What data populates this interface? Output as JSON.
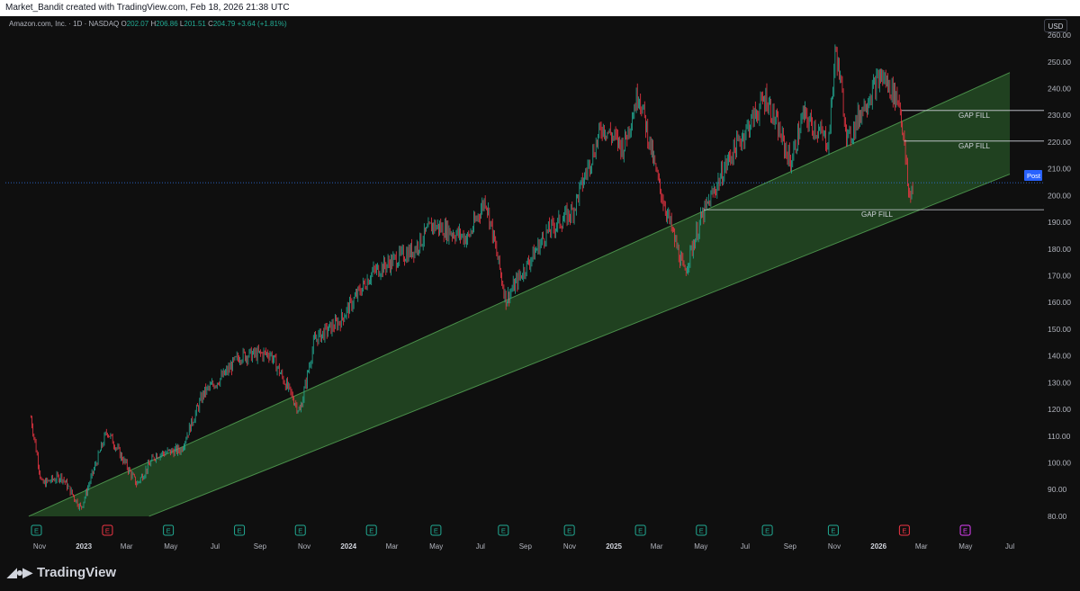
{
  "header": {
    "credit": "Market_Bandit created with TradingView.com, Feb 18, 2026 21:38 UTC"
  },
  "legend": {
    "symbol": "Amazon.com, Inc. · 1D · NASDAQ",
    "o_label": "O",
    "o_value": "202.07",
    "h_label": "H",
    "h_value": "206.86",
    "l_label": "L",
    "l_value": "201.51",
    "c_label": "C",
    "c_value": "204.79",
    "change": "+3.64 (+1.81%)"
  },
  "currency_button": "USD",
  "footer": {
    "brand": "TradingView",
    "logo_icon": "tradingview-logo-icon"
  },
  "colors": {
    "up": "#22ab94",
    "down": "#f23645",
    "channel_fill": "#2f6b2f",
    "channel_line": "#4a8f4a",
    "price_line": "#3179f5",
    "post_badge": "#2962ff"
  },
  "chart_data": {
    "type": "candlestick",
    "ylim": [
      75,
      262
    ],
    "y_ticks": [
      80,
      90,
      100,
      110,
      120,
      130,
      140,
      150,
      160,
      170,
      180,
      190,
      200,
      210,
      220,
      230,
      240,
      250,
      260
    ],
    "x_ticks": [
      "Nov",
      "2023",
      "Mar",
      "May",
      "Jul",
      "Sep",
      "Nov",
      "2024",
      "Mar",
      "May",
      "Jul",
      "Sep",
      "Nov",
      "2025",
      "Mar",
      "May",
      "Jul",
      "Sep",
      "Nov",
      "2026",
      "Mar",
      "May",
      "Jul"
    ],
    "price_path": [
      [
        "2022-10-20",
        117
      ],
      [
        "2022-11-04",
        92
      ],
      [
        "2022-12-01",
        95
      ],
      [
        "2022-12-28",
        83
      ],
      [
        "2023-02-02",
        112
      ],
      [
        "2023-03-15",
        92
      ],
      [
        "2023-04-10",
        103
      ],
      [
        "2023-05-15",
        105
      ],
      [
        "2023-06-15",
        126
      ],
      [
        "2023-07-14",
        133
      ],
      [
        "2023-08-04",
        140
      ],
      [
        "2023-09-15",
        141
      ],
      [
        "2023-10-26",
        119
      ],
      [
        "2023-11-15",
        146
      ],
      [
        "2023-12-20",
        153
      ],
      [
        "2024-02-02",
        171
      ],
      [
        "2024-04-01",
        180
      ],
      [
        "2024-04-26",
        189
      ],
      [
        "2024-06-14",
        184
      ],
      [
        "2024-07-08",
        199
      ],
      [
        "2024-08-05",
        161
      ],
      [
        "2024-09-30",
        186
      ],
      [
        "2024-11-05",
        194
      ],
      [
        "2024-12-16",
        226
      ],
      [
        "2025-01-14",
        218
      ],
      [
        "2025-02-04",
        239
      ],
      [
        "2025-03-03",
        205
      ],
      [
        "2025-04-08",
        171
      ],
      [
        "2025-05-01",
        191
      ],
      [
        "2025-06-09",
        214
      ],
      [
        "2025-07-30",
        237
      ],
      [
        "2025-09-02",
        212
      ],
      [
        "2025-09-19",
        230
      ],
      [
        "2025-10-24",
        220
      ],
      [
        "2025-11-03",
        255
      ],
      [
        "2025-11-20",
        220
      ],
      [
        "2025-12-10",
        233
      ],
      [
        "2026-01-05",
        245
      ],
      [
        "2026-01-30",
        235
      ],
      [
        "2026-02-05",
        220
      ],
      [
        "2026-02-12",
        199
      ],
      [
        "2026-02-18",
        204.79
      ]
    ],
    "channel": {
      "upper": [
        [
          "2022-10-17",
          80
        ],
        [
          "2026-07-01",
          246
        ]
      ],
      "lower": [
        [
          "2023-04-01",
          80
        ],
        [
          "2026-07-01",
          208
        ]
      ]
    },
    "gap_fills": [
      {
        "label": "GAP FILL",
        "price": 231.82,
        "price_label": "231.82",
        "from": "2026-02-02"
      },
      {
        "label": "GAP FILL",
        "price": 220.38,
        "price_label": "220.38",
        "from": "2026-02-05"
      },
      {
        "label": "GAP FILL",
        "price": 194.69,
        "price_label": "194.69",
        "from": "2025-05-05"
      }
    ],
    "last_price": {
      "price": 204.79,
      "label": "204.79"
    },
    "post_market": {
      "label": "Post",
      "price": 204.83,
      "price_label": "204.83"
    },
    "earnings_markers": [
      {
        "date": "2022-10-27",
        "label": "E",
        "kind": "past"
      },
      {
        "date": "2023-02-02",
        "label": "E",
        "kind": "down"
      },
      {
        "date": "2023-04-27",
        "label": "E",
        "kind": "past"
      },
      {
        "date": "2023-08-03",
        "label": "E",
        "kind": "past"
      },
      {
        "date": "2023-10-26",
        "label": "E",
        "kind": "past"
      },
      {
        "date": "2024-02-01",
        "label": "E",
        "kind": "past"
      },
      {
        "date": "2024-04-30",
        "label": "E",
        "kind": "past"
      },
      {
        "date": "2024-08-01",
        "label": "E",
        "kind": "past"
      },
      {
        "date": "2024-10-31",
        "label": "E",
        "kind": "past"
      },
      {
        "date": "2025-02-06",
        "label": "E",
        "kind": "past"
      },
      {
        "date": "2025-05-01",
        "label": "E",
        "kind": "past"
      },
      {
        "date": "2025-07-31",
        "label": "E",
        "kind": "past"
      },
      {
        "date": "2025-10-30",
        "label": "E",
        "kind": "past"
      },
      {
        "date": "2026-02-05",
        "label": "E",
        "kind": "down"
      },
      {
        "date": "2026-04-30",
        "label": "E",
        "kind": "future"
      }
    ]
  }
}
